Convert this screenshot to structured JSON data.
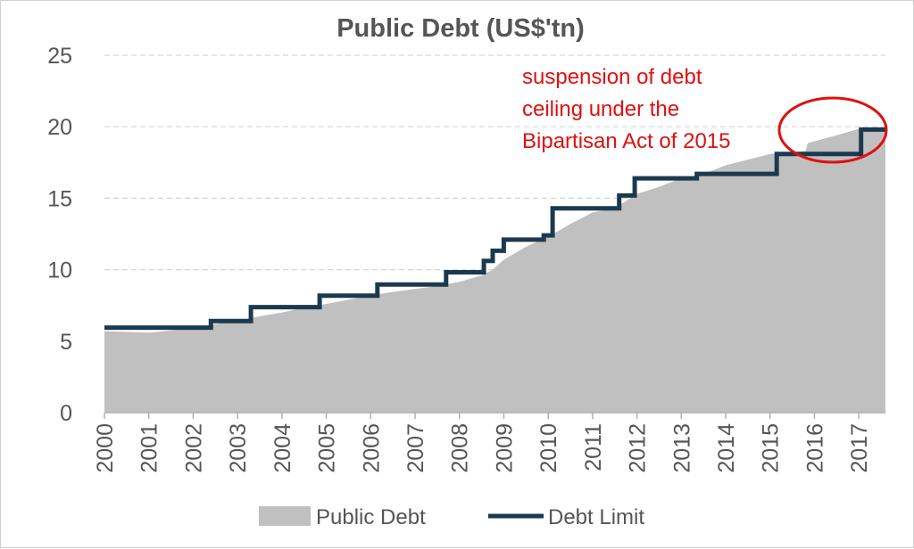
{
  "chart_data": {
    "type": "area",
    "title": "Public Debt (US$'tn)",
    "xlabel": "",
    "ylabel": "",
    "ylim": [
      0,
      25
    ],
    "yticks": [
      0,
      5,
      10,
      15,
      20,
      25
    ],
    "xlim": [
      2000,
      2017.6
    ],
    "xticks": [
      "2000",
      "2001",
      "2002",
      "2003",
      "2004",
      "2005",
      "2006",
      "2007",
      "2008",
      "2009",
      "2010",
      "2011",
      "2012",
      "2013",
      "2014",
      "2015",
      "2016",
      "2017"
    ],
    "grid": true,
    "legend_position": "bottom",
    "series": [
      {
        "name": "Public Debt",
        "type": "area",
        "color": "#c0c0c0",
        "points": [
          [
            2000.0,
            5.7
          ],
          [
            2000.5,
            5.65
          ],
          [
            2001.0,
            5.6
          ],
          [
            2001.5,
            5.75
          ],
          [
            2002.0,
            5.95
          ],
          [
            2002.5,
            6.2
          ],
          [
            2003.0,
            6.4
          ],
          [
            2003.5,
            6.75
          ],
          [
            2004.0,
            7.0
          ],
          [
            2004.5,
            7.35
          ],
          [
            2005.0,
            7.6
          ],
          [
            2005.5,
            7.9
          ],
          [
            2006.0,
            8.2
          ],
          [
            2006.5,
            8.45
          ],
          [
            2007.0,
            8.65
          ],
          [
            2007.5,
            8.85
          ],
          [
            2008.0,
            9.15
          ],
          [
            2008.5,
            9.6
          ],
          [
            2008.75,
            10.0
          ],
          [
            2009.0,
            10.7
          ],
          [
            2009.5,
            11.6
          ],
          [
            2010.0,
            12.3
          ],
          [
            2010.5,
            13.2
          ],
          [
            2011.0,
            14.0
          ],
          [
            2011.5,
            14.3
          ],
          [
            2011.75,
            14.8
          ],
          [
            2012.0,
            15.3
          ],
          [
            2012.5,
            15.8
          ],
          [
            2013.0,
            16.4
          ],
          [
            2013.5,
            16.7
          ],
          [
            2014.0,
            17.3
          ],
          [
            2014.5,
            17.7
          ],
          [
            2015.0,
            18.1
          ],
          [
            2015.3,
            18.15
          ],
          [
            2015.8,
            18.3
          ],
          [
            2015.85,
            18.85
          ],
          [
            2016.5,
            19.4
          ],
          [
            2017.0,
            19.85
          ],
          [
            2017.25,
            19.85
          ],
          [
            2017.3,
            19.7
          ],
          [
            2017.6,
            19.8
          ]
        ]
      },
      {
        "name": "Debt Limit",
        "type": "step-line",
        "color": "#1b3a4f",
        "points": [
          [
            2000.0,
            5.95
          ],
          [
            2002.4,
            5.95
          ],
          [
            2002.4,
            6.4
          ],
          [
            2003.3,
            6.4
          ],
          [
            2003.3,
            7.38
          ],
          [
            2004.85,
            7.38
          ],
          [
            2004.85,
            8.18
          ],
          [
            2006.15,
            8.18
          ],
          [
            2006.15,
            8.96
          ],
          [
            2007.7,
            8.96
          ],
          [
            2007.7,
            9.82
          ],
          [
            2008.55,
            9.82
          ],
          [
            2008.55,
            10.62
          ],
          [
            2008.75,
            10.62
          ],
          [
            2008.75,
            11.32
          ],
          [
            2009.0,
            11.32
          ],
          [
            2009.0,
            12.1
          ],
          [
            2009.9,
            12.1
          ],
          [
            2009.9,
            12.4
          ],
          [
            2010.1,
            12.4
          ],
          [
            2010.1,
            14.29
          ],
          [
            2011.6,
            14.29
          ],
          [
            2011.6,
            15.19
          ],
          [
            2011.95,
            15.19
          ],
          [
            2011.95,
            16.39
          ],
          [
            2013.35,
            16.39
          ],
          [
            2013.35,
            16.7
          ],
          [
            2015.15,
            16.7
          ],
          [
            2015.15,
            18.1
          ],
          [
            2017.05,
            18.1
          ],
          [
            2017.05,
            19.8
          ],
          [
            2017.6,
            19.8
          ]
        ]
      }
    ],
    "annotation": {
      "lines": [
        "suspension of debt",
        "ceiling under the",
        "Bipartisan Act of 2015"
      ],
      "color": "#e01010"
    }
  }
}
